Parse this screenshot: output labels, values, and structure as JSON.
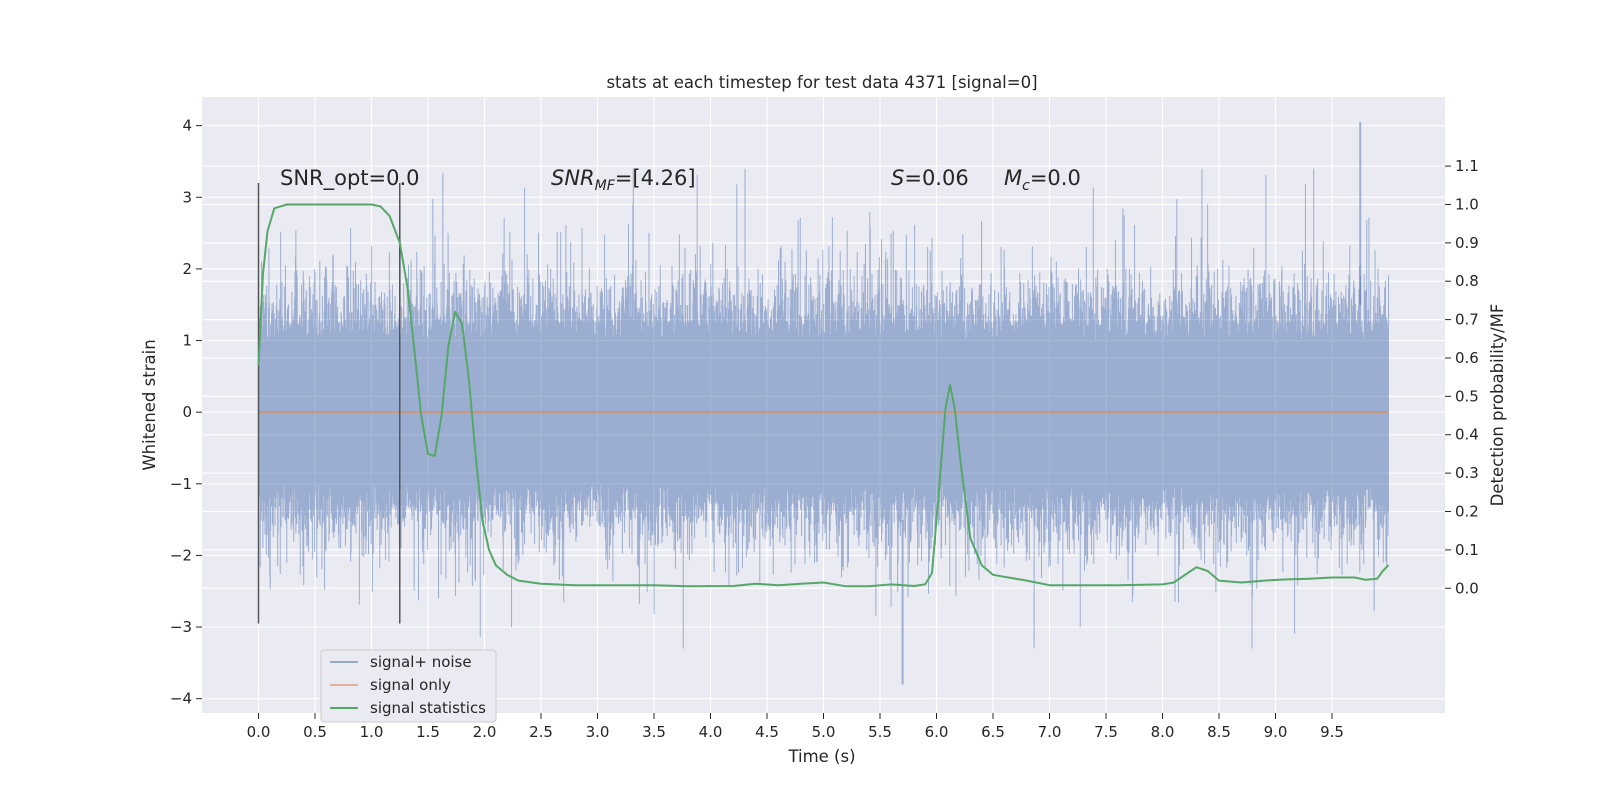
{
  "chart_data": {
    "type": "line",
    "title": "stats at each timestep for test data 4371 [signal=0]",
    "xlabel": "Time (s)",
    "ylabel_left": "Whitened strain",
    "ylabel_right": "Detection probability/MF",
    "xlim": [
      -0.5,
      10.5
    ],
    "ylim_left": [
      -4.2,
      4.4
    ],
    "ylim_right": [
      -0.325,
      1.28
    ],
    "xticks": [
      "0.0",
      "0.5",
      "1.0",
      "1.5",
      "2.0",
      "2.5",
      "3.0",
      "3.5",
      "4.0",
      "4.5",
      "5.0",
      "5.5",
      "6.0",
      "6.5",
      "7.0",
      "7.5",
      "8.0",
      "8.5",
      "9.0",
      "9.5"
    ],
    "yticks_left": [
      "4",
      "3",
      "2",
      "1",
      "0",
      "−1",
      "−2",
      "−3",
      "−4"
    ],
    "yticks_right": [
      "1.1",
      "1.0",
      "0.9",
      "0.8",
      "0.7",
      "0.6",
      "0.5",
      "0.4",
      "0.3",
      "0.2",
      "0.1",
      "0.0"
    ],
    "grid": true,
    "legend_position": "lower-left",
    "annotations": {
      "snr_opt": "SNR_opt=0.0",
      "snr_mf_sym": "SNR",
      "snr_mf_sub": "MF",
      "snr_mf_val": "=[4.26]",
      "s_sym": "S",
      "s_val": "=0.06",
      "mc_sym": "M",
      "mc_sub": "c",
      "mc_val": "=0.0"
    },
    "window_markers": {
      "x": [
        0.0,
        1.25
      ],
      "y_range": [
        -2.95,
        3.2
      ]
    },
    "series": [
      {
        "name": "signal+ noise",
        "color": "#4c72b0",
        "axis": "left",
        "description_values": {
          "x_start": 0.0,
          "x_end": 10.0,
          "dense_band_limits": [
            -1.85,
            1.95
          ],
          "max_peak": 4.05,
          "min_peak": -3.8
        }
      },
      {
        "name": "signal only",
        "color": "#dd8452",
        "axis": "left",
        "x": [
          0.0,
          10.0
        ],
        "y": [
          0.0,
          0.0
        ]
      },
      {
        "name": "signal statistics",
        "color": "#55a868",
        "axis": "right",
        "x": [
          0.0,
          0.04,
          0.08,
          0.14,
          0.25,
          0.5,
          0.75,
          1.0,
          1.08,
          1.16,
          1.25,
          1.32,
          1.38,
          1.44,
          1.5,
          1.56,
          1.62,
          1.68,
          1.74,
          1.8,
          1.86,
          1.92,
          1.98,
          2.04,
          2.1,
          2.2,
          2.3,
          2.5,
          2.8,
          3.2,
          3.5,
          3.8,
          4.2,
          4.4,
          4.6,
          4.8,
          5.0,
          5.2,
          5.4,
          5.6,
          5.8,
          5.9,
          5.96,
          6.02,
          6.08,
          6.12,
          6.16,
          6.22,
          6.3,
          6.4,
          6.5,
          6.6,
          6.8,
          7.0,
          7.3,
          7.6,
          8.0,
          8.1,
          8.2,
          8.3,
          8.4,
          8.5,
          8.7,
          8.9,
          9.1,
          9.3,
          9.5,
          9.7,
          9.8,
          9.9,
          9.95,
          10.0
        ],
        "y": [
          0.58,
          0.82,
          0.93,
          0.99,
          1.0,
          1.0,
          1.0,
          1.0,
          0.995,
          0.97,
          0.9,
          0.78,
          0.62,
          0.45,
          0.35,
          0.345,
          0.45,
          0.63,
          0.72,
          0.69,
          0.55,
          0.35,
          0.18,
          0.1,
          0.06,
          0.035,
          0.02,
          0.012,
          0.008,
          0.008,
          0.008,
          0.005,
          0.006,
          0.012,
          0.008,
          0.012,
          0.015,
          0.005,
          0.005,
          0.01,
          0.006,
          0.01,
          0.04,
          0.25,
          0.47,
          0.53,
          0.47,
          0.31,
          0.13,
          0.06,
          0.035,
          0.03,
          0.02,
          0.008,
          0.008,
          0.008,
          0.01,
          0.015,
          0.035,
          0.055,
          0.045,
          0.02,
          0.015,
          0.02,
          0.023,
          0.025,
          0.028,
          0.028,
          0.022,
          0.025,
          0.045,
          0.06
        ]
      }
    ]
  }
}
